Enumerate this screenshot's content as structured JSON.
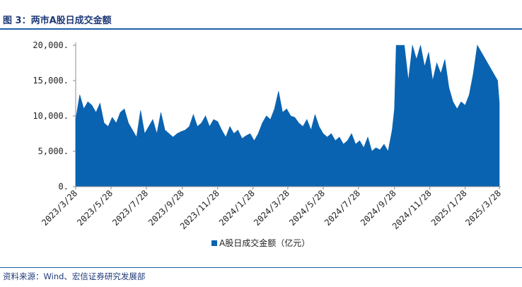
{
  "figure": {
    "title": "图 3：两市A股日成交金额",
    "source": "资料来源：Wind、宏信证券研究发展部"
  },
  "colors": {
    "area": "#0a63b0",
    "axis": "#8c8c8c",
    "title": "#1f3a78",
    "rule": "#1f5fa8"
  },
  "chart_data": {
    "type": "area",
    "title": "",
    "xlabel": "",
    "ylabel": "",
    "ylim": [
      0,
      20000
    ],
    "y_ticks": [
      0,
      5000,
      10000,
      15000,
      20000
    ],
    "y_tick_labels": [
      "0.",
      "5,000.",
      "10,000.",
      "15,000.",
      "20,000."
    ],
    "x_tick_labels": [
      "2023/3/28",
      "2023/5/28",
      "2023/7/28",
      "2023/9/28",
      "2023/11/28",
      "2024/1/28",
      "2024/3/28",
      "2024/5/28",
      "2024/7/28",
      "2024/9/28",
      "2024/11/28",
      "2025/1/28",
      "2025/3/28"
    ],
    "legend": {
      "position": "bottom-center",
      "entries": [
        "A股日成交金额（亿元）"
      ]
    },
    "grid": false,
    "series": [
      {
        "name": "A股日成交金额（亿元）",
        "x": [
          "2023/3/28",
          "2023/4/4",
          "2023/4/11",
          "2023/4/18",
          "2023/4/25",
          "2023/5/2",
          "2023/5/9",
          "2023/5/16",
          "2023/5/23",
          "2023/5/30",
          "2023/6/6",
          "2023/6/13",
          "2023/6/20",
          "2023/6/27",
          "2023/7/4",
          "2023/7/11",
          "2023/7/18",
          "2023/7/25",
          "2023/8/1",
          "2023/8/8",
          "2023/8/15",
          "2023/8/22",
          "2023/8/29",
          "2023/9/5",
          "2023/9/12",
          "2023/9/19",
          "2023/9/26",
          "2023/10/3",
          "2023/10/10",
          "2023/10/17",
          "2023/10/24",
          "2023/10/31",
          "2023/11/7",
          "2023/11/14",
          "2023/11/21",
          "2023/11/28",
          "2023/12/5",
          "2023/12/12",
          "2023/12/19",
          "2023/12/26",
          "2024/1/2",
          "2024/1/9",
          "2024/1/16",
          "2024/1/23",
          "2024/1/30",
          "2024/2/6",
          "2024/2/13",
          "2024/2/20",
          "2024/2/27",
          "2024/3/5",
          "2024/3/12",
          "2024/3/19",
          "2024/3/26",
          "2024/4/2",
          "2024/4/9",
          "2024/4/16",
          "2024/4/23",
          "2024/4/30",
          "2024/5/7",
          "2024/5/14",
          "2024/5/21",
          "2024/5/28",
          "2024/6/4",
          "2024/6/11",
          "2024/6/18",
          "2024/6/25",
          "2024/7/2",
          "2024/7/9",
          "2024/7/16",
          "2024/7/23",
          "2024/7/30",
          "2024/8/6",
          "2024/8/13",
          "2024/8/20",
          "2024/8/27",
          "2024/9/3",
          "2024/9/10",
          "2024/9/17",
          "2024/9/24",
          "2024/9/28",
          "2024/10/1",
          "2024/10/8",
          "2024/10/15",
          "2024/10/22",
          "2024/10/29",
          "2024/11/5",
          "2024/11/12",
          "2024/11/19",
          "2024/11/26",
          "2024/12/3",
          "2024/12/10",
          "2024/12/17",
          "2024/12/24",
          "2024/12/31",
          "2025/1/7",
          "2025/1/14",
          "2025/1/21",
          "2025/1/28",
          "2025/2/4",
          "2025/2/11",
          "2025/2/18",
          "2025/2/25",
          "2025/3/4",
          "2025/3/11",
          "2025/3/18",
          "2025/3/25",
          "2025/3/28"
        ],
        "values": [
          9500,
          13000,
          11000,
          12000,
          11500,
          10500,
          11800,
          9000,
          8500,
          9800,
          9000,
          10500,
          11000,
          9000,
          8000,
          7000,
          10800,
          7500,
          8500,
          9500,
          7500,
          10500,
          8000,
          7500,
          7000,
          7500,
          7800,
          8000,
          8500,
          10200,
          8500,
          9000,
          10000,
          8500,
          9500,
          9200,
          8000,
          7000,
          8500,
          7500,
          8000,
          6800,
          7200,
          7500,
          6500,
          7500,
          9000,
          10000,
          9500,
          11000,
          13500,
          10500,
          11000,
          10000,
          9800,
          9000,
          8500,
          9500,
          8000,
          10200,
          8500,
          7500,
          7000,
          7500,
          6500,
          7000,
          6000,
          6500,
          7500,
          6000,
          6500,
          5500,
          7000,
          5000,
          5500,
          5200,
          6000,
          5000,
          8000,
          11000,
          20000,
          20000,
          20000,
          15000,
          20000,
          18000,
          20000,
          17000,
          19000,
          15000,
          17500,
          16000,
          18000,
          14000,
          12000,
          11000,
          12000,
          11500,
          13000,
          16000,
          20000,
          19000,
          18000,
          17000,
          16000,
          15000,
          11800
        ]
      }
    ]
  }
}
